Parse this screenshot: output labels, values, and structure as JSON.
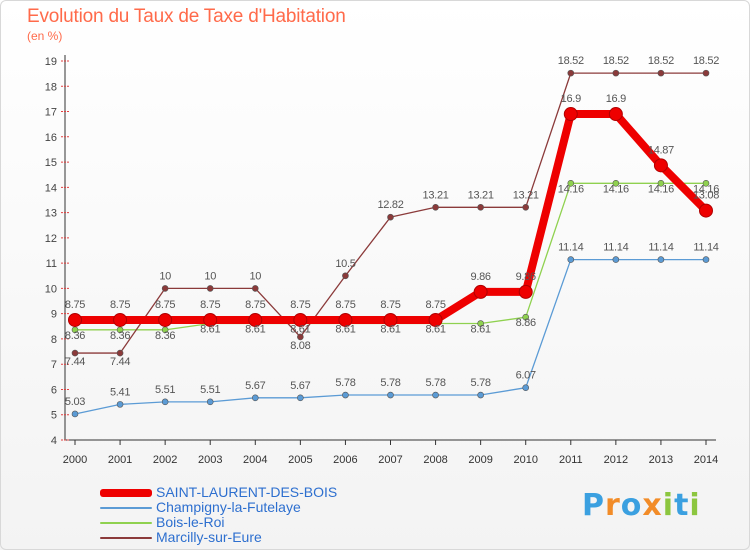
{
  "header": {
    "title": "Evolution du Taux de Taxe d'Habitation",
    "unit": "(en %)"
  },
  "logo": {
    "text": "Proxiti",
    "colors": [
      "#3ba0e0",
      "#f28c28",
      "#3ba0e0",
      "#f28c28",
      "#8cc63f",
      "#3ba0e0",
      "#8cc63f"
    ]
  },
  "chart_data": {
    "type": "line",
    "title": "Evolution du Taux de Taxe d'Habitation",
    "ylabel": "(en %)",
    "xlabel": "",
    "categories": [
      "2000",
      "2001",
      "2002",
      "2003",
      "2004",
      "2005",
      "2006",
      "2007",
      "2008",
      "2009",
      "2010",
      "2011",
      "2012",
      "2013",
      "2014"
    ],
    "y_ticks": [
      4,
      5,
      6,
      7,
      8,
      9,
      10,
      11,
      12,
      13,
      14,
      15,
      16,
      17,
      18,
      19
    ],
    "ylim": [
      4,
      19
    ],
    "grid": false,
    "legend_position": "bottom-left",
    "series": [
      {
        "name": "SAINT-LAURENT-DES-BOIS",
        "color": "#ee0000",
        "values": [
          8.75,
          8.75,
          8.75,
          8.75,
          8.75,
          8.75,
          8.75,
          8.75,
          8.75,
          9.86,
          9.86,
          16.9,
          16.9,
          14.87,
          13.08
        ],
        "labels": [
          "8.75",
          "8.75",
          "8.75",
          "8.75",
          "8.75",
          "8.75",
          "8.75",
          "8.75",
          "8.75",
          "9.86",
          "9.86",
          "16.9",
          "16.9",
          "14.87",
          "13.08"
        ]
      },
      {
        "name": "Champigny-la-Futelaye",
        "color": "#5b9bd5",
        "values": [
          5.03,
          5.41,
          5.51,
          5.51,
          5.67,
          5.67,
          5.78,
          5.78,
          5.78,
          5.78,
          6.07,
          11.14,
          11.14,
          11.14,
          11.14
        ],
        "labels": [
          "5.03",
          "5.41",
          "5.51",
          "5.51",
          "5.67",
          "5.67",
          "5.78",
          "5.78",
          "5.78",
          "5.78",
          "6.07",
          "11.14",
          "11.14",
          "11.14",
          "11.14"
        ]
      },
      {
        "name": "Bois-le-Roi",
        "color": "#8fd14f",
        "values": [
          8.36,
          8.36,
          8.36,
          8.61,
          8.61,
          8.61,
          8.61,
          8.61,
          8.61,
          8.61,
          8.86,
          14.16,
          14.16,
          14.16,
          14.16
        ],
        "labels": [
          "8.36",
          "8.36",
          "8.36",
          "8.61",
          "8.61",
          "8.61",
          "8.61",
          "8.61",
          "8.61",
          "8.61",
          "8.86",
          "14.16",
          "14.16",
          "14.16",
          "14.16"
        ]
      },
      {
        "name": "Marcilly-sur-Eure",
        "color": "#8b3a3a",
        "values": [
          7.44,
          7.44,
          10,
          10,
          10,
          8.08,
          10.5,
          12.82,
          13.21,
          13.21,
          13.21,
          18.52,
          18.52,
          18.52,
          18.52
        ],
        "labels": [
          "7.44",
          "7.44",
          "10",
          "10",
          "10",
          "8.08",
          "10.5",
          "12.82",
          "13.21",
          "13.21",
          "13.21",
          "18.52",
          "18.52",
          "18.52",
          "18.52"
        ]
      }
    ]
  }
}
